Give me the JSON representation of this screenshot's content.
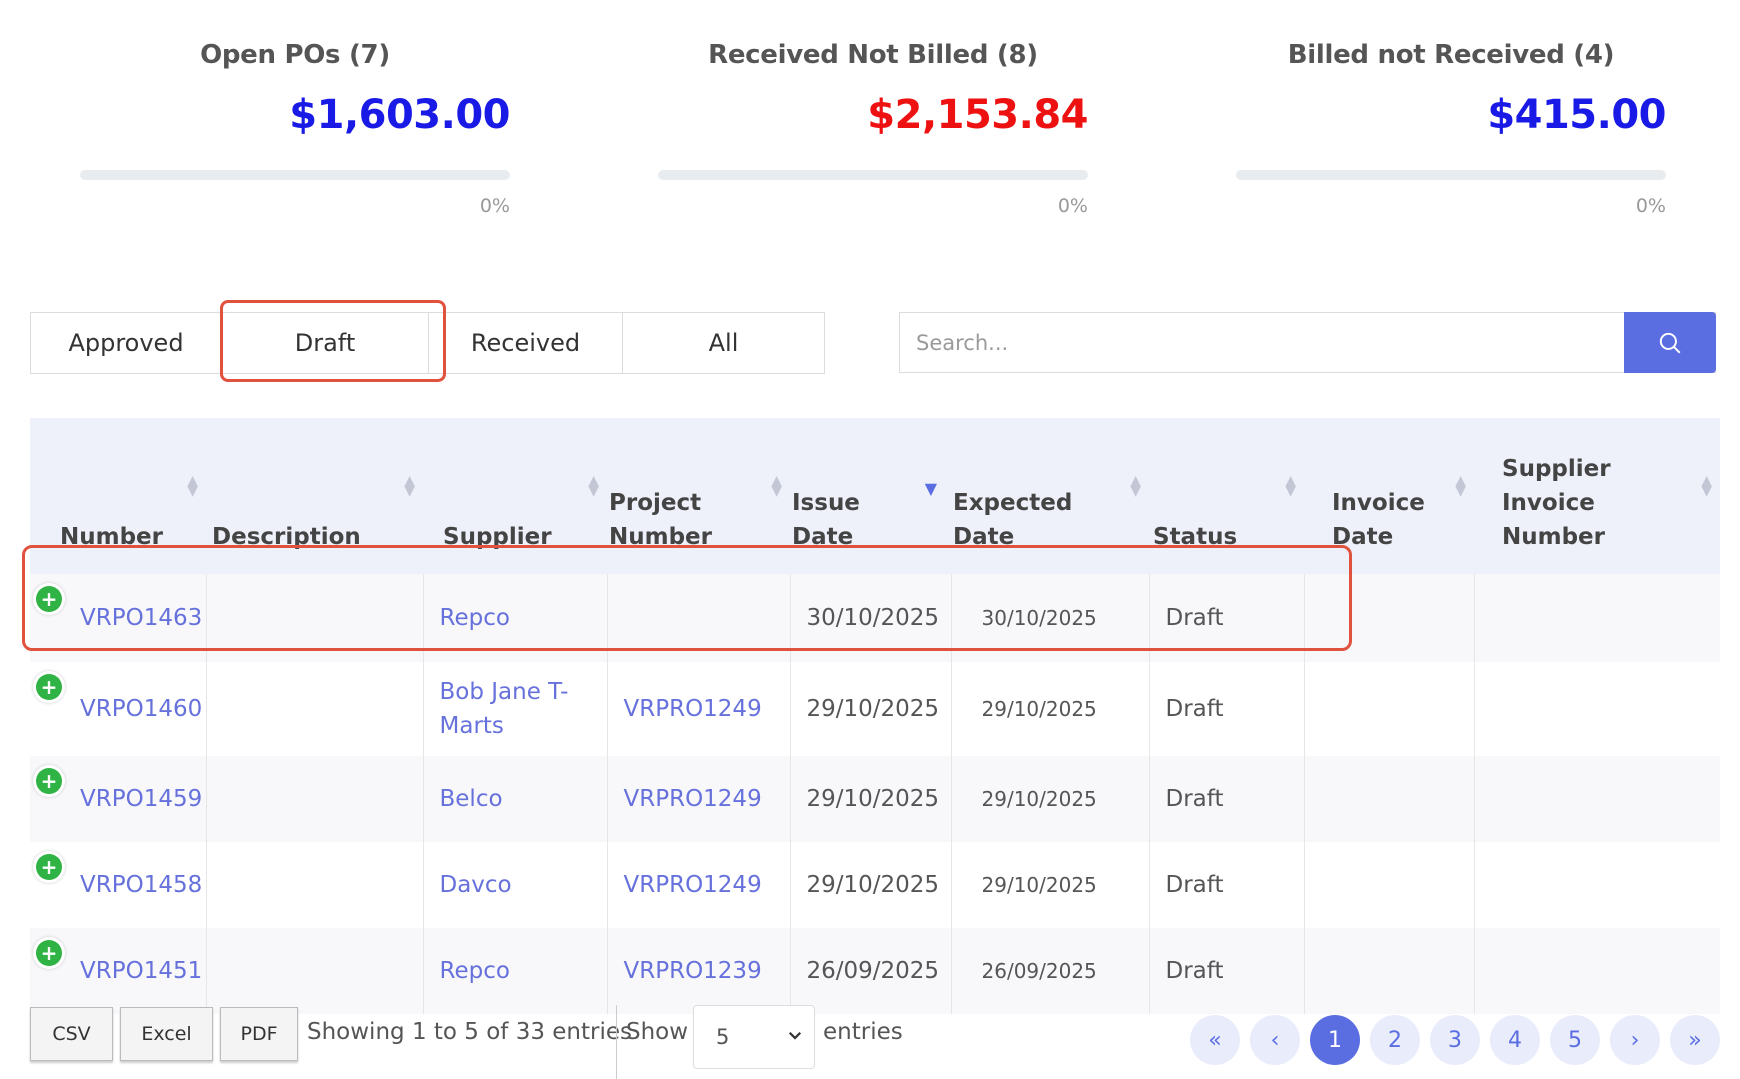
{
  "summary": [
    {
      "title": "Open POs (7)",
      "amount": "$1,603.00",
      "amount_color": "#1a1ae6",
      "percent_label": "0%",
      "progress_fraction": 0
    },
    {
      "title": "Received Not Billed (8)",
      "amount": "$2,153.84",
      "amount_color": "#ee1111",
      "percent_label": "0%",
      "progress_fraction": 0
    },
    {
      "title": "Billed not Received (4)",
      "amount": "$415.00",
      "amount_color": "#1a1ae6",
      "percent_label": "0%",
      "progress_fraction": 0
    }
  ],
  "tabs": [
    "Approved",
    "Draft",
    "Received",
    "All"
  ],
  "active_tab": "Draft",
  "search": {
    "placeholder": "Search...",
    "button_icon": "search-icon"
  },
  "table": {
    "columns": [
      "Number",
      "Description",
      "Supplier",
      "Project\nNumber",
      "Issue\nDate",
      "Expected\nDate",
      "Status",
      "Invoice\nDate",
      "Supplier\nInvoice\nNumber"
    ],
    "sorted_column": "Issue\nDate",
    "rows": [
      {
        "number": "VRPO1463",
        "description": "",
        "supplier": "Repco",
        "project_number": "",
        "issue_date": "30/10/2025",
        "expected_date": "30/10/2025",
        "status": "Draft",
        "invoice_date": "",
        "supplier_invoice_number": ""
      },
      {
        "number": "VRPO1460",
        "description": "",
        "supplier": "Bob Jane T-Marts",
        "project_number": "VRPRO1249",
        "issue_date": "29/10/2025",
        "expected_date": "29/10/2025",
        "status": "Draft",
        "invoice_date": "",
        "supplier_invoice_number": ""
      },
      {
        "number": "VRPO1459",
        "description": "",
        "supplier": "Belco",
        "project_number": "VRPRO1249",
        "issue_date": "29/10/2025",
        "expected_date": "29/10/2025",
        "status": "Draft",
        "invoice_date": "",
        "supplier_invoice_number": ""
      },
      {
        "number": "VRPO1458",
        "description": "",
        "supplier": "Davco",
        "project_number": "VRPRO1249",
        "issue_date": "29/10/2025",
        "expected_date": "29/10/2025",
        "status": "Draft",
        "invoice_date": "",
        "supplier_invoice_number": ""
      },
      {
        "number": "VRPO1451",
        "description": "",
        "supplier": "Repco",
        "project_number": "VRPRO1239",
        "issue_date": "26/09/2025",
        "expected_date": "26/09/2025",
        "status": "Draft",
        "invoice_date": "",
        "supplier_invoice_number": ""
      }
    ]
  },
  "footer": {
    "export_buttons": [
      "CSV",
      "Excel",
      "PDF"
    ],
    "showing_text": "Showing 1 to 5 of 33 entries",
    "show_label": "Show",
    "page_size": "5",
    "entries_label": "entries",
    "pages": [
      "«",
      "‹",
      "1",
      "2",
      "3",
      "4",
      "5",
      "›",
      "»"
    ],
    "current_page": "1"
  },
  "colors": {
    "accent": "#5b6ee1",
    "link": "#6671db",
    "highlight": "#e0523e",
    "add_icon": "#2fb344"
  }
}
